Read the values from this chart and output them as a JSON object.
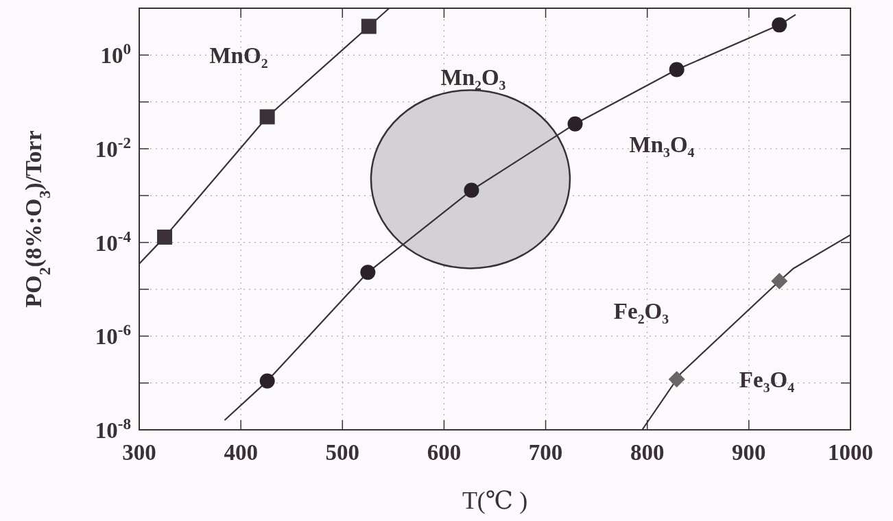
{
  "chart_data": {
    "type": "line",
    "xlabel": "T(℃ )",
    "ylabel": "PO$_{2}$(8%:O$_{3}$)/Torr",
    "log": "y",
    "grid": true,
    "line_style": "solid",
    "xlim": [
      300,
      1000
    ],
    "xticks": [
      300,
      400,
      500,
      600,
      700,
      800,
      900,
      1000
    ],
    "ylim": [
      1e-08,
      10
    ],
    "yticks": [
      {
        "value": 10,
        "label": null
      },
      {
        "value": 1,
        "label": "10$^{0}$"
      },
      {
        "value": 0.1,
        "label": null
      },
      {
        "value": 0.01,
        "label": "10$^{-2}$"
      },
      {
        "value": 0.001,
        "label": null
      },
      {
        "value": 0.0001,
        "label": "10$^{-4}$"
      },
      {
        "value": 1e-05,
        "label": null
      },
      {
        "value": 1e-06,
        "label": "10$^{-6}$"
      },
      {
        "value": 1e-07,
        "label": null
      },
      {
        "value": 1e-08,
        "label": "10$^{-8}$"
      }
    ],
    "series": [
      {
        "marker": "none",
        "color": "#3a3035",
        "x": [
          300,
          325,
          426,
          526,
          546
        ],
        "values": [
          3.5e-05,
          0.00013,
          0.048,
          4.1,
          10
        ]
      },
      {
        "type": "scatter",
        "marker": "square",
        "color": "#3a3236",
        "x": [
          325,
          426,
          526
        ],
        "values": [
          0.00013,
          0.048,
          4.1
        ]
      },
      {
        "marker": "none",
        "color": "#3a3035",
        "x": [
          384,
          426,
          525,
          627,
          729,
          829,
          930,
          946
        ],
        "values": [
          1.6e-08,
          1.1e-07,
          2.3e-05,
          0.0013,
          0.034,
          0.49,
          4.4,
          7.3
        ]
      },
      {
        "type": "scatter",
        "marker": "circle",
        "color": "#2a2228",
        "x": [
          426,
          525,
          627,
          729,
          829,
          930
        ],
        "values": [
          1.1e-07,
          2.3e-05,
          0.0013,
          0.034,
          0.49,
          4.4
        ]
      },
      {
        "marker": "none",
        "color": "#3a3035",
        "x": [
          795,
          829,
          833,
          930,
          944,
          1000
        ],
        "values": [
          1e-08,
          1.2e-07,
          1.6e-07,
          1.5e-05,
          2.8e-05,
          0.000145
        ]
      },
      {
        "type": "scatter",
        "marker": "diamond",
        "color": "#6a6668",
        "x": [
          829,
          930
        ],
        "values": [
          1.2e-07,
          1.5e-05
        ]
      }
    ],
    "annotations": [
      "MnO₂",
      "Mn₂O₃",
      "Mn₃O₄",
      "Fe₂O₃",
      "Fe₃O₄"
    ]
  }
}
